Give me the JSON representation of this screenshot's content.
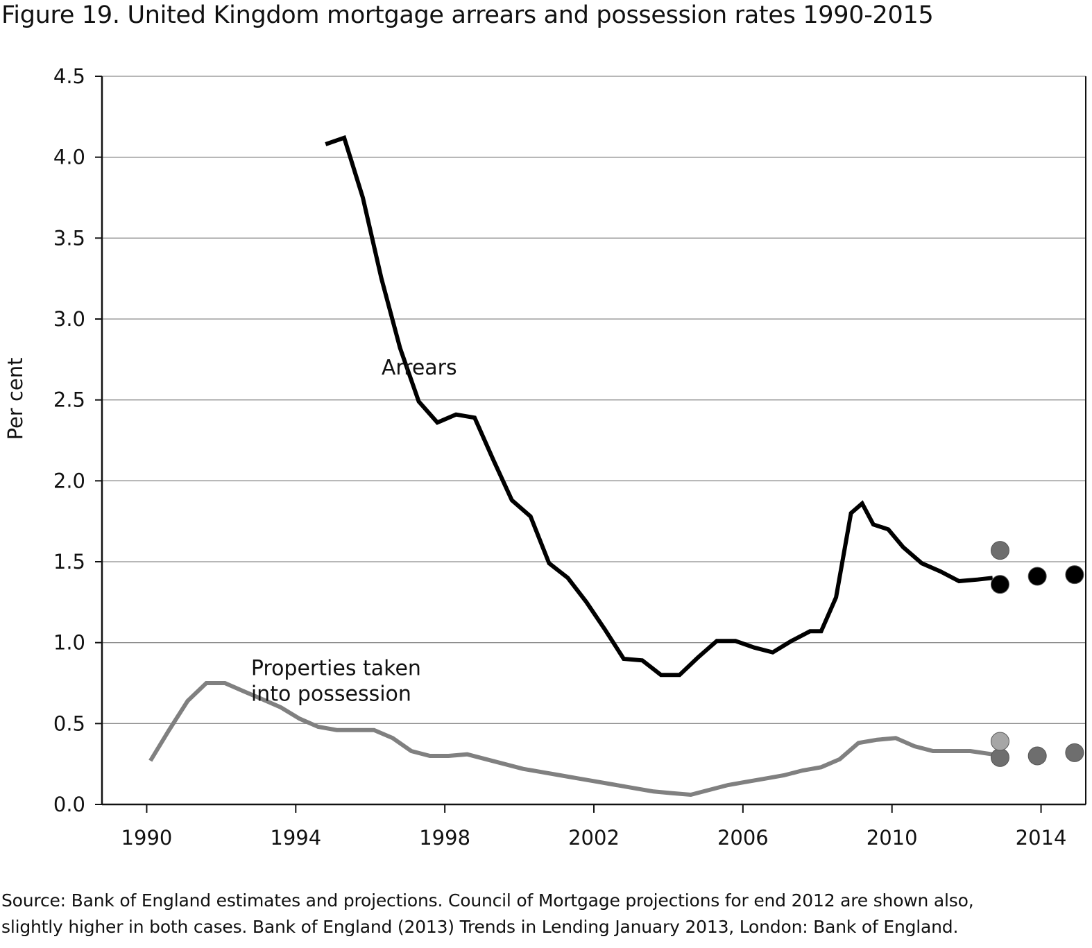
{
  "title": "Figure 19.  United Kingdom mortgage arrears and possession rates 1990-2015",
  "source": {
    "line1": "Source: Bank of England estimates and projections. Council of Mortgage projections for end 2012 are shown also,",
    "line2": "slightly higher in both cases. Bank of England (2013) Trends in Lending January 2013, London: Bank of England."
  },
  "chart_data": {
    "type": "line",
    "ylabel": "Per cent",
    "xlabel": "",
    "ylim": [
      0,
      4.5
    ],
    "xlim": [
      1988.8,
      2015.2
    ],
    "y_ticks": [
      "0.0",
      "0.5",
      "1.0",
      "1.5",
      "2.0",
      "2.5",
      "3.0",
      "3.5",
      "4.0",
      "4.5"
    ],
    "x_ticks": [
      "1990",
      "1994",
      "1998",
      "2002",
      "2006",
      "2010",
      "2014"
    ],
    "grid": "horizontal",
    "colors": {
      "arrears": "#000000",
      "possessions": "#808080",
      "projection_grey": "#6e6e6e",
      "cml_light": "#a6a6a6"
    },
    "annotations": [
      {
        "text": "Arrears",
        "series": "arrears"
      },
      {
        "text": "Properties taken",
        "series": "possessions"
      },
      {
        "text": "into possession",
        "series": "possessions"
      }
    ],
    "series": [
      {
        "name": "Arrears",
        "x": [
          1994.8,
          1995.3,
          1995.8,
          1996.3,
          1996.8,
          1997.3,
          1997.8,
          1998.3,
          1998.8,
          1999.3,
          1999.8,
          2000.3,
          2000.8,
          2001.3,
          2001.8,
          2002.3,
          2002.8,
          2003.3,
          2003.8,
          2004.3,
          2004.8,
          2005.3,
          2005.8,
          2006.3,
          2006.8,
          2007.3,
          2007.8,
          2008.1,
          2008.5,
          2008.9,
          2009.2,
          2009.5,
          2009.9,
          2010.3,
          2010.8,
          2011.3,
          2011.8,
          2012.3,
          2012.7
        ],
        "y": [
          4.08,
          4.12,
          3.75,
          3.25,
          2.82,
          2.49,
          2.36,
          2.41,
          2.39,
          2.13,
          1.88,
          1.78,
          1.49,
          1.4,
          1.25,
          1.08,
          0.9,
          0.89,
          0.8,
          0.8,
          0.91,
          1.01,
          1.01,
          0.97,
          0.94,
          1.01,
          1.07,
          1.07,
          1.28,
          1.8,
          1.86,
          1.73,
          1.7,
          1.59,
          1.49,
          1.44,
          1.38,
          1.39,
          1.4
        ]
      },
      {
        "name": "Properties taken into possession",
        "x": [
          1990.1,
          1990.6,
          1991.1,
          1991.6,
          1992.1,
          1992.6,
          1993.1,
          1993.6,
          1994.1,
          1994.6,
          1995.1,
          1995.6,
          1996.1,
          1996.6,
          1997.1,
          1997.6,
          1998.1,
          1998.6,
          1999.1,
          1999.6,
          2000.1,
          2000.6,
          2001.1,
          2001.6,
          2002.1,
          2002.6,
          2003.1,
          2003.6,
          2004.1,
          2004.6,
          2005.1,
          2005.6,
          2006.1,
          2006.6,
          2007.1,
          2007.6,
          2008.1,
          2008.6,
          2009.1,
          2009.6,
          2010.1,
          2010.6,
          2011.1,
          2011.6,
          2012.1,
          2012.7
        ],
        "y": [
          0.27,
          0.46,
          0.64,
          0.75,
          0.75,
          0.7,
          0.65,
          0.6,
          0.53,
          0.48,
          0.46,
          0.46,
          0.46,
          0.41,
          0.33,
          0.3,
          0.3,
          0.31,
          0.28,
          0.25,
          0.22,
          0.2,
          0.18,
          0.16,
          0.14,
          0.12,
          0.1,
          0.08,
          0.07,
          0.06,
          0.09,
          0.12,
          0.14,
          0.16,
          0.18,
          0.21,
          0.23,
          0.28,
          0.38,
          0.4,
          0.41,
          0.36,
          0.33,
          0.33,
          0.33,
          0.31
        ]
      }
    ],
    "projection_points": [
      {
        "series": "Arrears",
        "source": "Bank of England",
        "x": [
          2012.9,
          2013.9,
          2014.9
        ],
        "y": [
          1.36,
          1.41,
          1.42
        ],
        "color": "#000000"
      },
      {
        "series": "Arrears",
        "source": "Council of Mortgage",
        "x": [
          2012.9
        ],
        "y": [
          1.57
        ],
        "color": "#6e6e6e"
      },
      {
        "series": "Properties taken into possession",
        "source": "Bank of England",
        "x": [
          2012.9,
          2013.9,
          2014.9
        ],
        "y": [
          0.29,
          0.3,
          0.32
        ],
        "color": "#6e6e6e"
      },
      {
        "series": "Properties taken into possession",
        "source": "Council of Mortgage",
        "x": [
          2012.9
        ],
        "y": [
          0.39
        ],
        "color": "#a6a6a6"
      }
    ]
  }
}
